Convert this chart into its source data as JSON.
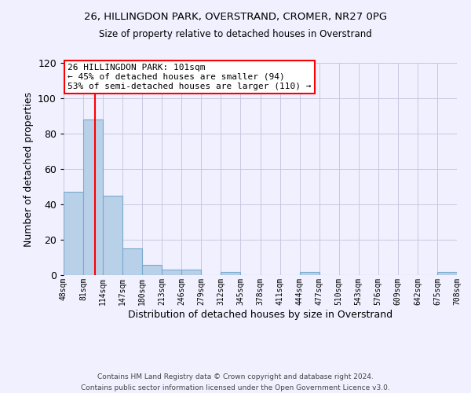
{
  "title1": "26, HILLINGDON PARK, OVERSTRAND, CROMER, NR27 0PG",
  "title2": "Size of property relative to detached houses in Overstrand",
  "xlabel": "Distribution of detached houses by size in Overstrand",
  "ylabel": "Number of detached properties",
  "bin_edges": [
    48,
    81,
    114,
    147,
    180,
    213,
    246,
    279,
    312,
    345,
    378,
    411,
    444,
    477,
    510,
    543,
    576,
    609,
    642,
    675,
    708
  ],
  "bar_heights": [
    47,
    88,
    45,
    15,
    6,
    3,
    3,
    0,
    2,
    0,
    0,
    0,
    2,
    0,
    0,
    0,
    0,
    0,
    0,
    2
  ],
  "bar_color": "#b8d0e8",
  "bar_edge_color": "#7aaacf",
  "vline_x": 101,
  "vline_color": "red",
  "ylim": [
    0,
    120
  ],
  "yticks": [
    0,
    20,
    40,
    60,
    80,
    100,
    120
  ],
  "tick_labels": [
    "48sqm",
    "81sqm",
    "114sqm",
    "147sqm",
    "180sqm",
    "213sqm",
    "246sqm",
    "279sqm",
    "312sqm",
    "345sqm",
    "378sqm",
    "411sqm",
    "444sqm",
    "477sqm",
    "510sqm",
    "543sqm",
    "576sqm",
    "609sqm",
    "642sqm",
    "675sqm",
    "708sqm"
  ],
  "annotation_title": "26 HILLINGDON PARK: 101sqm",
  "annotation_line1": "← 45% of detached houses are smaller (94)",
  "annotation_line2": "53% of semi-detached houses are larger (110) →",
  "footer1": "Contains HM Land Registry data © Crown copyright and database right 2024.",
  "footer2": "Contains public sector information licensed under the Open Government Licence v3.0.",
  "bg_color": "#f0f0ff",
  "grid_color": "#c8c8e0"
}
